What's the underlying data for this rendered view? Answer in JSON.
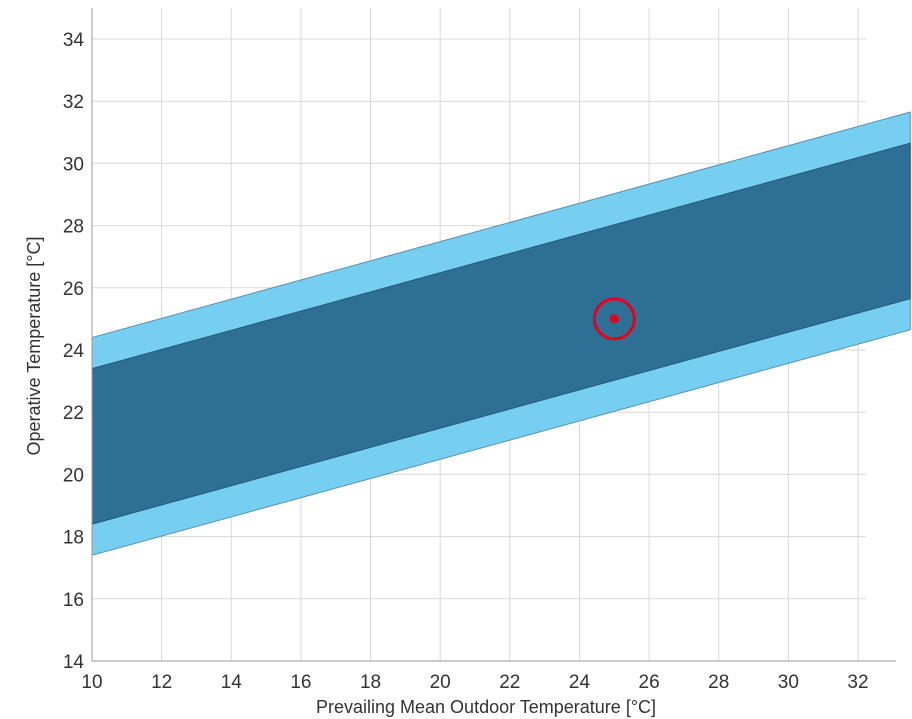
{
  "chart_data": {
    "type": "area",
    "title": "",
    "xlabel": "Prevailing Mean Outdoor Temperature [°C]",
    "ylabel": "Operative Temperature [°C]",
    "xlim": [
      10,
      33.5
    ],
    "ylim": [
      14,
      35
    ],
    "x_ticks": [
      10,
      12,
      14,
      16,
      18,
      20,
      22,
      24,
      26,
      28,
      30,
      32
    ],
    "y_ticks": [
      14,
      16,
      18,
      20,
      22,
      24,
      26,
      28,
      30,
      32,
      34
    ],
    "grid": true,
    "legend": "none",
    "bands": [
      {
        "upper": {
          "x": [
            10,
            33.5
          ],
          "y": [
            24.4,
            31.65
          ]
        },
        "lower": {
          "x": [
            10,
            33.5
          ],
          "y": [
            17.4,
            24.65
          ]
        },
        "color": "#76cff0"
      },
      {
        "upper": {
          "x": [
            10,
            33.5
          ],
          "y": [
            23.4,
            30.65
          ]
        },
        "lower": {
          "x": [
            10,
            33.5
          ],
          "y": [
            18.4,
            25.65
          ]
        },
        "color": "#2e6f96"
      }
    ],
    "points": [
      {
        "x": 25,
        "y": 25,
        "color": "#e3001b",
        "marker": "dot-in-circle"
      }
    ]
  }
}
